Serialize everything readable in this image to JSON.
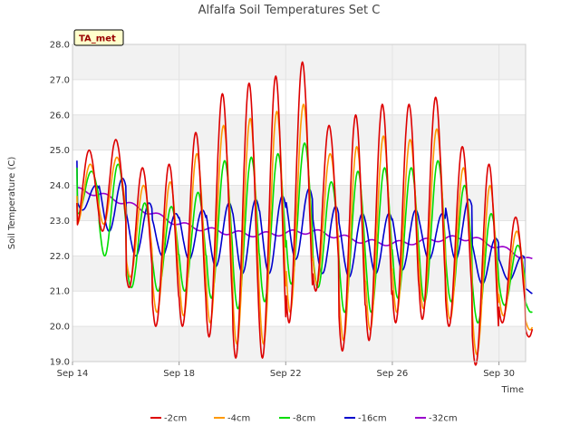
{
  "chart_data": {
    "type": "line",
    "title": "Alfalfa Soil Temperatures Set C",
    "xlabel": "Time",
    "ylabel": "Soil Temperature (C)",
    "badge": "TA_met",
    "x_range": [
      "2016-09-14",
      "2016-10-01"
    ],
    "ylim": [
      19.0,
      28.0
    ],
    "x_ticks": [
      {
        "date": "2016-09-14",
        "label": "Sep 14"
      },
      {
        "date": "2016-09-18",
        "label": "Sep 18"
      },
      {
        "date": "2016-09-22",
        "label": "Sep 22"
      },
      {
        "date": "2016-09-26",
        "label": "Sep 26"
      },
      {
        "date": "2016-09-30",
        "label": "Sep 30"
      }
    ],
    "y_ticks": [
      "19.0",
      "20.0",
      "21.0",
      "22.0",
      "23.0",
      "24.0",
      "25.0",
      "26.0",
      "27.0",
      "28.0"
    ],
    "grid": true,
    "band_color": "#f2f2f2",
    "legend_position": "bottom",
    "daily_dates": [
      "2016-09-14",
      "2016-09-15",
      "2016-09-16",
      "2016-09-17",
      "2016-09-18",
      "2016-09-19",
      "2016-09-20",
      "2016-09-21",
      "2016-09-22",
      "2016-09-23",
      "2016-09-24",
      "2016-09-25",
      "2016-09-26",
      "2016-09-27",
      "2016-09-28",
      "2016-09-29",
      "2016-09-30",
      "2016-10-01"
    ],
    "series": [
      {
        "name": "-2cm",
        "color": "#dd0000",
        "peak_hour": 15,
        "series_start": "2016-09-14 04:00",
        "series_end": "2016-10-01 06:00",
        "start_value": 23.5,
        "daily_min": [
          22.8,
          22.7,
          21.1,
          20.0,
          20.0,
          19.7,
          19.1,
          19.1,
          20.1,
          21.0,
          19.3,
          19.6,
          20.1,
          20.2,
          20.0,
          18.9,
          20.1,
          19.7
        ],
        "daily_max": [
          25.0,
          25.3,
          24.5,
          24.6,
          25.5,
          26.6,
          26.9,
          27.1,
          27.5,
          25.7,
          26.0,
          26.3,
          26.3,
          26.5,
          25.1,
          24.6,
          23.1,
          21.2
        ]
      },
      {
        "name": "-4cm",
        "color": "#ff9900",
        "peak_hour": 16,
        "series_start": "2016-09-14 04:00",
        "series_end": "2016-10-01 06:00",
        "start_value": 23.7,
        "daily_min": [
          22.9,
          22.9,
          21.4,
          20.4,
          20.3,
          20.1,
          19.5,
          19.5,
          20.4,
          21.2,
          19.6,
          19.9,
          20.4,
          20.5,
          20.2,
          19.2,
          20.3,
          19.9
        ],
        "daily_max": [
          24.6,
          24.8,
          24.0,
          24.1,
          24.9,
          25.7,
          25.9,
          26.1,
          26.3,
          24.9,
          25.1,
          25.4,
          25.3,
          25.6,
          24.5,
          24.0,
          22.7,
          21.0
        ]
      },
      {
        "name": "-8cm",
        "color": "#00dd00",
        "peak_hour": 17,
        "series_start": "2016-09-14 04:00",
        "series_end": "2016-10-01 06:00",
        "start_value": 24.5,
        "daily_min": [
          23.2,
          22.0,
          21.1,
          21.0,
          21.0,
          20.8,
          20.5,
          20.7,
          21.2,
          21.1,
          20.4,
          20.4,
          20.8,
          20.7,
          20.7,
          20.1,
          20.6,
          20.4
        ],
        "daily_max": [
          24.4,
          24.6,
          23.5,
          23.4,
          23.8,
          24.7,
          24.8,
          24.9,
          25.2,
          24.1,
          24.4,
          24.5,
          24.5,
          24.7,
          24.0,
          23.2,
          22.3,
          21.2
        ]
      },
      {
        "name": "-16cm",
        "color": "#0000cc",
        "peak_hour": 21,
        "series_start": "2016-09-14 04:00",
        "series_end": "2016-10-01 06:00",
        "start_value": 24.7,
        "daily_min": [
          23.3,
          22.7,
          22.0,
          22.0,
          21.9,
          21.7,
          21.5,
          21.5,
          21.9,
          21.5,
          21.4,
          21.5,
          21.6,
          21.9,
          21.9,
          21.2,
          21.3,
          20.9
        ],
        "daily_max": [
          24.0,
          24.2,
          23.5,
          23.2,
          23.3,
          23.5,
          23.6,
          23.7,
          23.9,
          23.4,
          23.2,
          23.2,
          23.3,
          23.2,
          23.6,
          22.5,
          22.0,
          21.1
        ]
      },
      {
        "name": "-32cm",
        "color": "#9900cc",
        "series_start": "2016-09-14 04:00",
        "series_end": "2016-10-01 06:00",
        "trend": [
          23.9,
          23.75,
          23.5,
          23.2,
          22.9,
          22.75,
          22.65,
          22.6,
          22.65,
          22.7,
          22.55,
          22.4,
          22.35,
          22.4,
          22.5,
          22.5,
          22.25,
          21.95,
          21.55
        ],
        "wiggle": 0.07
      }
    ]
  }
}
